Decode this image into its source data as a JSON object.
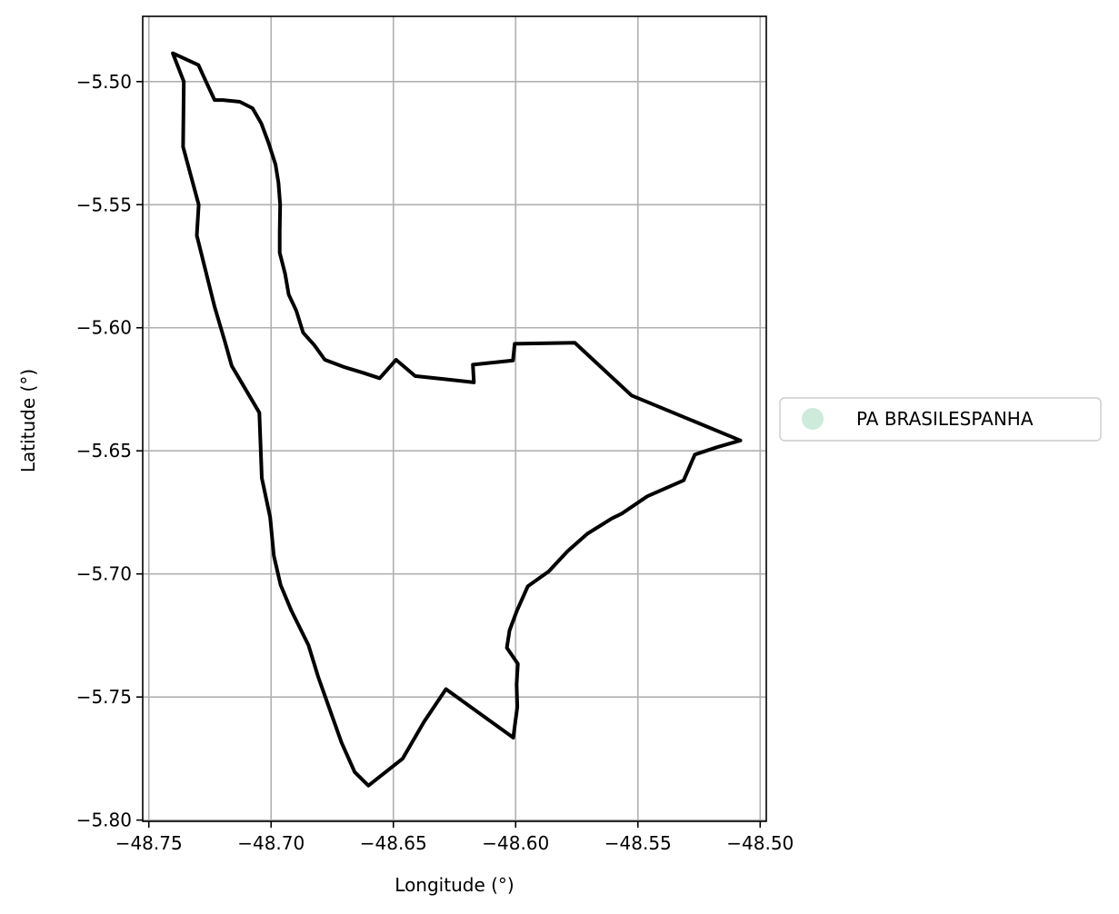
{
  "chart_data": {
    "type": "map",
    "xlabel": "Longitude (°)",
    "ylabel": "Latitude (°)",
    "xlim": [
      -48.7525,
      -48.4975
    ],
    "ylim": [
      -5.8005,
      -5.4735
    ],
    "xticks": [
      {
        "value": -48.75,
        "label": "−48.75"
      },
      {
        "value": -48.7,
        "label": "−48.70"
      },
      {
        "value": -48.65,
        "label": "−48.65"
      },
      {
        "value": -48.6,
        "label": "−48.60"
      },
      {
        "value": -48.55,
        "label": "−48.55"
      },
      {
        "value": -48.5,
        "label": "−48.50"
      }
    ],
    "yticks": [
      {
        "value": -5.5,
        "label": "−5.50"
      },
      {
        "value": -5.55,
        "label": "−5.55"
      },
      {
        "value": -5.6,
        "label": "−5.60"
      },
      {
        "value": -5.65,
        "label": "−5.65"
      },
      {
        "value": -5.7,
        "label": "−5.70"
      },
      {
        "value": -5.75,
        "label": "−5.75"
      },
      {
        "value": -5.8,
        "label": "−5.80"
      }
    ],
    "grid": true,
    "legend_position": "center-left-outside",
    "legend": [
      {
        "label": "PA BRASILESPANHA",
        "color": "#cdeadb",
        "marker": "circle"
      }
    ],
    "series": [
      {
        "name": "PA BRASILESPANHA",
        "edge_color": "#000000",
        "fill": "none",
        "polygon": [
          [
            -48.7402,
            -5.4885
          ],
          [
            -48.7297,
            -5.4933
          ],
          [
            -48.7263,
            -5.5007
          ],
          [
            -48.7231,
            -5.5075
          ],
          [
            -48.7197,
            -5.5075
          ],
          [
            -48.7128,
            -5.5082
          ],
          [
            -48.7076,
            -5.5108
          ],
          [
            -48.704,
            -5.517
          ],
          [
            -48.701,
            -5.525
          ],
          [
            -48.6982,
            -5.5337
          ],
          [
            -48.697,
            -5.541
          ],
          [
            -48.6963,
            -5.55
          ],
          [
            -48.6965,
            -5.561
          ],
          [
            -48.6965,
            -5.5695
          ],
          [
            -48.6943,
            -5.578
          ],
          [
            -48.6928,
            -5.5865
          ],
          [
            -48.6897,
            -5.593
          ],
          [
            -48.6869,
            -5.602
          ],
          [
            -48.6824,
            -5.607
          ],
          [
            -48.678,
            -5.613
          ],
          [
            -48.67,
            -5.616
          ],
          [
            -48.6624,
            -5.6183
          ],
          [
            -48.6556,
            -5.6205
          ],
          [
            -48.6489,
            -5.613
          ],
          [
            -48.6411,
            -5.6196
          ],
          [
            -48.628,
            -5.621
          ],
          [
            -48.6171,
            -5.6222
          ],
          [
            -48.6175,
            -5.615
          ],
          [
            -48.6011,
            -5.6133
          ],
          [
            -48.6004,
            -5.6065
          ],
          [
            -48.5758,
            -5.6061
          ],
          [
            -48.5526,
            -5.6275
          ],
          [
            -48.5081,
            -5.6458
          ],
          [
            -48.5176,
            -5.6485
          ],
          [
            -48.5267,
            -5.6515
          ],
          [
            -48.5313,
            -5.662
          ],
          [
            -48.5462,
            -5.6685
          ],
          [
            -48.5566,
            -5.6755
          ],
          [
            -48.5607,
            -5.6775
          ],
          [
            -48.5707,
            -5.6837
          ],
          [
            -48.5788,
            -5.6908
          ],
          [
            -48.5865,
            -5.699
          ],
          [
            -48.595,
            -5.705
          ],
          [
            -48.5995,
            -5.715
          ],
          [
            -48.6025,
            -5.723
          ],
          [
            -48.6036,
            -5.73
          ],
          [
            -48.5991,
            -5.7365
          ],
          [
            -48.5996,
            -5.745
          ],
          [
            -48.5993,
            -5.754
          ],
          [
            -48.601,
            -5.7665
          ],
          [
            -48.6285,
            -5.7468
          ],
          [
            -48.6374,
            -5.76
          ],
          [
            -48.6462,
            -5.775
          ],
          [
            -48.6602,
            -5.786
          ],
          [
            -48.6658,
            -5.7805
          ],
          [
            -48.6712,
            -5.7685
          ],
          [
            -48.6807,
            -5.742
          ],
          [
            -48.6847,
            -5.729
          ],
          [
            -48.6917,
            -5.715
          ],
          [
            -48.6961,
            -5.7045
          ],
          [
            -48.6989,
            -5.6925
          ],
          [
            -48.7004,
            -5.677
          ],
          [
            -48.7038,
            -5.661
          ],
          [
            -48.7048,
            -5.6345
          ],
          [
            -48.7161,
            -5.6155
          ],
          [
            -48.7188,
            -5.606
          ],
          [
            -48.7231,
            -5.5915
          ],
          [
            -48.7304,
            -5.5625
          ],
          [
            -48.7296,
            -5.55
          ],
          [
            -48.736,
            -5.5265
          ],
          [
            -48.7357,
            -5.5
          ],
          [
            -48.7402,
            -5.4885
          ]
        ]
      }
    ]
  }
}
